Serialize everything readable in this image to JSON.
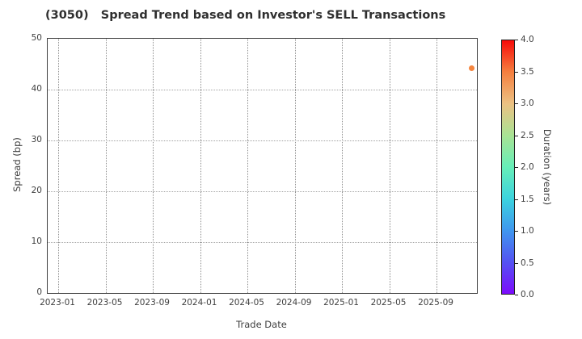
{
  "chart_data": {
    "type": "scatter",
    "title": "(3050)   Spread Trend based on Investor's SELL Transactions",
    "xlabel": "Trade Date",
    "ylabel": "Spread (bp)",
    "x_tick_labels": [
      "2023-01",
      "2023-05",
      "2023-09",
      "2024-01",
      "2024-05",
      "2024-09",
      "2025-01",
      "2025-05",
      "2025-09"
    ],
    "y_tick_labels": [
      "0",
      "10",
      "20",
      "30",
      "40",
      "50"
    ],
    "ylim": [
      0,
      50
    ],
    "grid": "dotted",
    "legend_position": "none",
    "points": [
      {
        "date": "2025-12",
        "spread_bp": 44.2,
        "duration_years": 3.4,
        "color": "#f5863f"
      }
    ],
    "colorbar": {
      "label": "Duration (years)",
      "range": [
        0.0,
        4.0
      ],
      "ticks": [
        "0.0",
        "0.5",
        "1.0",
        "1.5",
        "2.0",
        "2.5",
        "3.0",
        "3.5",
        "4.0"
      ],
      "gradient_top_to_bottom": [
        "#f60b0a",
        "#f57f3f",
        "#ecc183",
        "#a9e394",
        "#67eeb8",
        "#3cd3de",
        "#3f97ef",
        "#5452f2",
        "#7c0cfc"
      ]
    }
  }
}
